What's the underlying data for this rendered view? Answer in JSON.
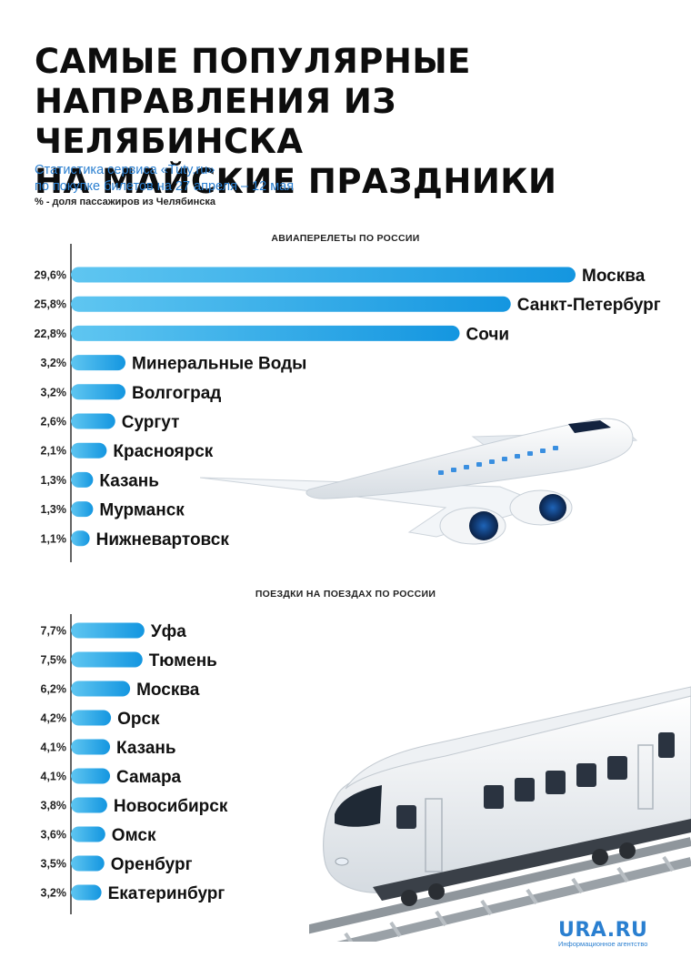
{
  "title_lines": [
    "САМЫЕ ПОПУЛЯРНЫЕ",
    "НАПРАВЛЕНИЯ ИЗ ЧЕЛЯБИНСКА",
    "НА МАЙСКИЕ ПРАЗДНИКИ"
  ],
  "subtitle_lines": [
    "Статистика сервиса «Tuty.ru»",
    "по покупке билетов на 27 апреля – 12 мая"
  ],
  "note": "% - доля пассажиров из Челябинска",
  "brand": {
    "name": "URA.RU",
    "tagline": "Информационное агентство"
  },
  "colors": {
    "bar_start": "#5fc6f1",
    "bar_end": "#1496e0",
    "subtitle": "#2a7fd0"
  },
  "icons": [
    "airplane-illustration",
    "train-illustration"
  ],
  "chart_data": [
    {
      "type": "bar",
      "orientation": "horizontal",
      "title": "АВИАПЕРЕЛЕТЫ ПО РОССИИ",
      "categories": [
        "Москва",
        "Санкт-Петербург",
        "Сочи",
        "Минеральные Воды",
        "Волгоград",
        "Сургут",
        "Красноярск",
        "Казань",
        "Мурманск",
        "Нижневартовск"
      ],
      "values": [
        29.6,
        25.8,
        22.8,
        3.2,
        3.2,
        2.6,
        2.1,
        1.3,
        1.3,
        1.1
      ],
      "value_labels": [
        "29,6%",
        "25,8%",
        "22,8%",
        "3,2%",
        "3,2%",
        "2,6%",
        "2,1%",
        "1,3%",
        "1,3%",
        "1,1%"
      ],
      "unit": "%"
    },
    {
      "type": "bar",
      "orientation": "horizontal",
      "title": "ПОЕЗДКИ НА ПОЕЗДАХ ПО РОССИИ",
      "categories": [
        "Уфа",
        "Тюмень",
        "Москва",
        "Орск",
        "Казань",
        "Самара",
        "Новосибирск",
        "Омск",
        "Оренбург",
        "Екатеринбург"
      ],
      "values": [
        7.7,
        7.5,
        6.2,
        4.2,
        4.1,
        4.1,
        3.8,
        3.6,
        3.5,
        3.2
      ],
      "value_labels": [
        "7,7%",
        "7,5%",
        "6,2%",
        "4,2%",
        "4,1%",
        "4,1%",
        "3,8%",
        "3,6%",
        "3,5%",
        "3,2%"
      ],
      "unit": "%"
    }
  ]
}
